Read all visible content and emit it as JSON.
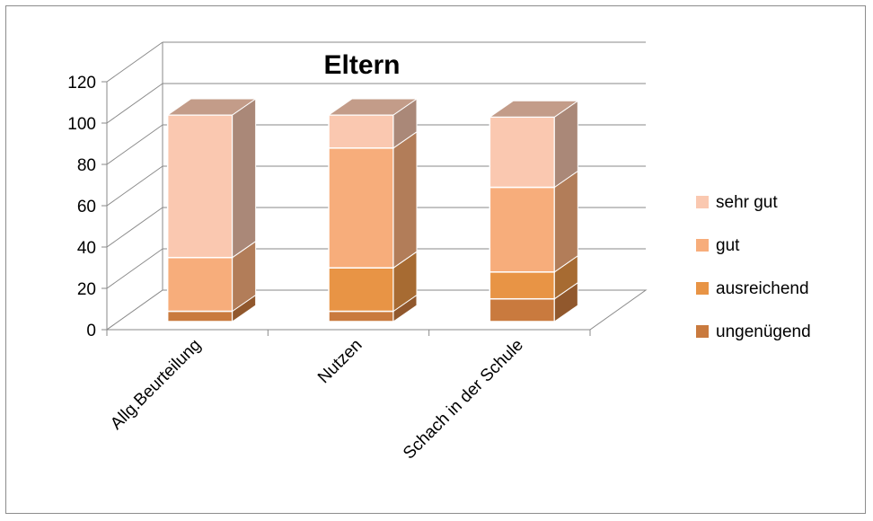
{
  "chart_data": {
    "type": "bar",
    "stacked": true,
    "three_d": true,
    "title": "Eltern",
    "xlabel": "",
    "ylabel": "",
    "ylim": [
      0,
      120
    ],
    "yticks": [
      0,
      20,
      40,
      60,
      80,
      100,
      120
    ],
    "grid": true,
    "legend_position": "right",
    "categories": [
      "Allg.Beurteilung",
      "Nutzen",
      "Schach in der Schule"
    ],
    "series": [
      {
        "name": "ungenügend",
        "values": [
          5,
          5,
          11
        ],
        "color": "#C97A3E"
      },
      {
        "name": "ausreichend",
        "values": [
          0,
          21,
          13
        ],
        "color": "#E89445"
      },
      {
        "name": "gut",
        "values": [
          26,
          58,
          41
        ],
        "color": "#F7AD7B"
      },
      {
        "name": "sehr gut",
        "values": [
          69,
          16,
          34
        ],
        "color": "#FAC8B0"
      }
    ]
  }
}
